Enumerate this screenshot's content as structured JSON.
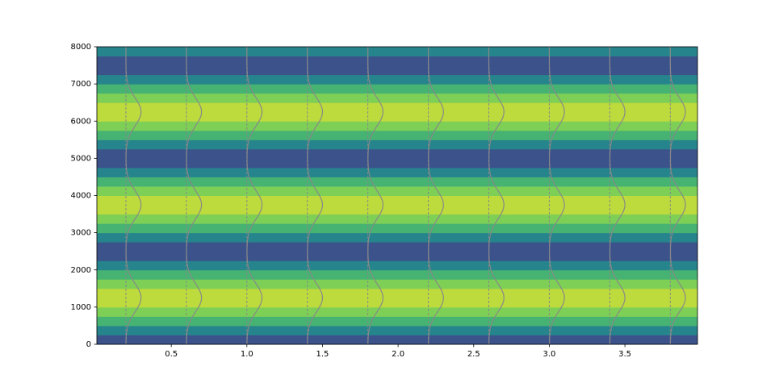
{
  "chart_data": {
    "type": "spectrogram",
    "xlim": [
      0.008,
      3.98
    ],
    "ylim": [
      0,
      8000
    ],
    "xticks": [
      0.5,
      1.0,
      1.5,
      2.0,
      2.5,
      3.0,
      3.5
    ],
    "xtick_labels": [
      "0.5",
      "1.0",
      "1.5",
      "2.0",
      "2.5",
      "3.0",
      "3.5"
    ],
    "yticks": [
      0,
      1000,
      2000,
      3000,
      4000,
      5000,
      6000,
      7000,
      8000
    ],
    "freq_bins": [
      0,
      250,
      500,
      750,
      1000,
      1250,
      1500,
      1750,
      2000,
      2250,
      2500,
      2750,
      3000,
      3250,
      3500,
      3750,
      4000,
      4250,
      4500,
      4750,
      5000,
      5250,
      5500,
      5750,
      6000,
      6250,
      6500,
      6750,
      7000,
      7250,
      7500,
      7750,
      8000
    ],
    "intensity": [
      0.25,
      0.45,
      0.65,
      0.8,
      0.9,
      0.9,
      0.8,
      0.65,
      0.45,
      0.25,
      0.25,
      0.45,
      0.65,
      0.8,
      0.9,
      0.9,
      0.8,
      0.65,
      0.45,
      0.25,
      0.25,
      0.45,
      0.65,
      0.8,
      0.9,
      0.9,
      0.8,
      0.65,
      0.45,
      0.25,
      0.25,
      0.45
    ],
    "colormap": [
      "#440154",
      "#3b528b",
      "#21918c",
      "#5ec962",
      "#fde725"
    ],
    "window_starts": [
      0.2,
      0.6,
      1.0,
      1.4,
      1.8,
      2.2,
      2.6,
      3.0,
      3.4,
      3.8
    ],
    "window_peak_freqs": [
      1250,
      3750,
      6250
    ],
    "window_width": 380,
    "window_amplitude": 0.1,
    "overlay_color": "#888888"
  }
}
